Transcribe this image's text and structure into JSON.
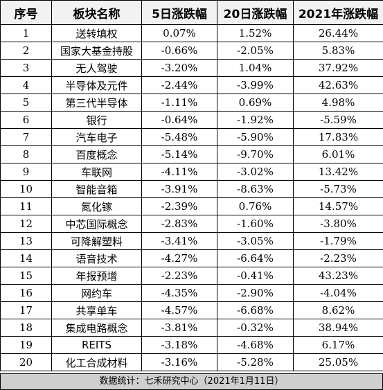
{
  "table": {
    "headers": [
      "序号",
      "板块名称",
      "5日涨跌幅",
      "20日涨跌幅",
      "2021年涨跌幅"
    ],
    "rows": [
      [
        "1",
        "送转填权",
        "0.07%",
        "1.52%",
        "26.44%"
      ],
      [
        "2",
        "国家大基金持股",
        "-0.66%",
        "-2.05%",
        "5.83%"
      ],
      [
        "3",
        "无人驾驶",
        "-3.20%",
        "1.04%",
        "37.92%"
      ],
      [
        "4",
        "半导体及元件",
        "-2.44%",
        "-3.99%",
        "42.63%"
      ],
      [
        "5",
        "第三代半导体",
        "-1.11%",
        "0.69%",
        "4.98%"
      ],
      [
        "6",
        "银行",
        "-0.64%",
        "-1.92%",
        "-5.59%"
      ],
      [
        "7",
        "汽车电子",
        "-5.48%",
        "-5.90%",
        "17.83%"
      ],
      [
        "8",
        "百度概念",
        "-5.14%",
        "-9.70%",
        "6.01%"
      ],
      [
        "9",
        "车联网",
        "-4.11%",
        "-3.02%",
        "13.42%"
      ],
      [
        "10",
        "智能音箱",
        "-3.91%",
        "-8.63%",
        "-5.73%"
      ],
      [
        "11",
        "氮化镓",
        "-2.39%",
        "0.76%",
        "14.57%"
      ],
      [
        "12",
        "中芯国际概念",
        "-2.83%",
        "-1.60%",
        "-3.80%"
      ],
      [
        "13",
        "可降解塑料",
        "-3.41%",
        "-3.05%",
        "-1.79%"
      ],
      [
        "14",
        "语音技术",
        "-4.27%",
        "-6.64%",
        "-2.23%"
      ],
      [
        "15",
        "年报预增",
        "-2.23%",
        "-0.41%",
        "43.23%"
      ],
      [
        "16",
        "网约车",
        "-4.35%",
        "-2.90%",
        "-4.04%"
      ],
      [
        "17",
        "共享单车",
        "-4.57%",
        "-6.68%",
        "8.62%"
      ],
      [
        "18",
        "集成电路概念",
        "-3.81%",
        "-0.32%",
        "38.94%"
      ],
      [
        "19",
        "REITS",
        "-3.18%",
        "-4.68%",
        "6.17%"
      ],
      [
        "20",
        "化工合成材料",
        "-3.16%",
        "-5.28%",
        "25.05%"
      ]
    ]
  },
  "footer": {
    "note": "数据统计：七禾研究中心（2021年1月11日）"
  }
}
